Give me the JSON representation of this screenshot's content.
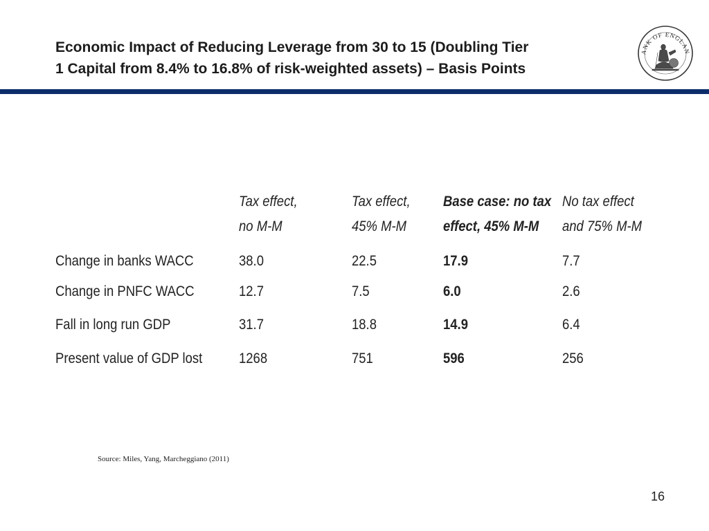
{
  "slide": {
    "title_line1": "Economic Impact of Reducing Leverage from 30 to 15 (Doubling Tier",
    "title_line2": "1 Capital from 8.4% to 16.8% of risk-weighted assets) – Basis Points",
    "logo_text": "BANK OF ENGLAND",
    "source": "Source: Miles, Yang, Marcheggiano (2011)",
    "page_number": "16"
  },
  "table": {
    "headers": [
      {
        "line1": "Tax effect,",
        "line2": "no M-M"
      },
      {
        "line1": "Tax effect,",
        "line2": "45% M-M"
      },
      {
        "line1": "Base case: no tax",
        "line2": "effect, 45% M-M"
      },
      {
        "line1": "No tax effect",
        "line2": "and 75% M-M"
      }
    ],
    "rows": [
      {
        "label": "Change in banks WACC",
        "values": [
          "38.0",
          "22.5",
          "17.9",
          "7.7"
        ]
      },
      {
        "label": "Change in PNFC WACC",
        "values": [
          "12.7",
          "7.5",
          "6.0",
          "2.6"
        ]
      },
      {
        "label": "Fall in long run GDP",
        "values": [
          "31.7",
          "18.8",
          "14.9",
          "6.4"
        ]
      },
      {
        "label": "Present value of GDP lost",
        "values": [
          "1268",
          "751",
          "596",
          "256"
        ]
      }
    ]
  },
  "colors": {
    "rule": "#0d2d6b",
    "title": "#1c1c1c"
  }
}
